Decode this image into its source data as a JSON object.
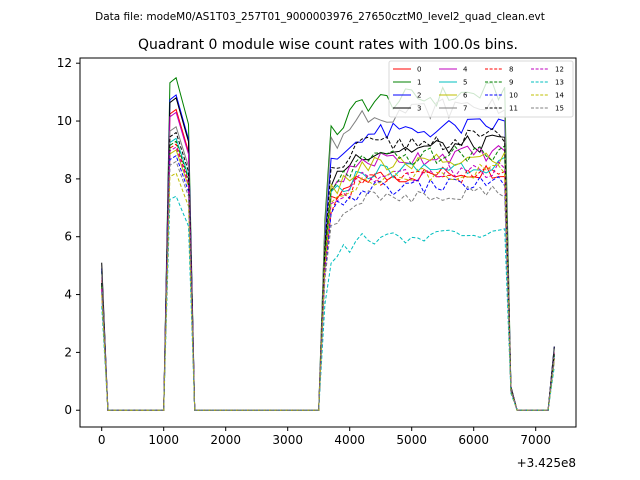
{
  "chart_data": {
    "type": "line",
    "suptitle": "Data file: modeM0/AS1T03_257T01_9000003976_27650cztM0_level2_quad_clean.evt",
    "title": "Quadrant 0 module wise count rates with 100.0s bins.",
    "xlabel": "",
    "ylabel": "",
    "offset_label": "+3.425e8",
    "xlim": [
      -350,
      7650
    ],
    "ylim": [
      -0.58,
      12.18
    ],
    "xticks": [
      0,
      1000,
      2000,
      3000,
      4000,
      5000,
      6000,
      7000
    ],
    "xtick_labels": [
      "0",
      "1000",
      "2000",
      "3000",
      "4000",
      "5000",
      "6000",
      "7000"
    ],
    "yticks": [
      0,
      2,
      4,
      6,
      8,
      10,
      12
    ],
    "ytick_labels": [
      "0",
      "2",
      "4",
      "6",
      "8",
      "10",
      "12"
    ],
    "legend_position": "top-right",
    "legend_columns": 4,
    "segments": [
      {
        "x": [
          0,
          100,
          200,
          300,
          400,
          500,
          600,
          700,
          800,
          900,
          1000
        ]
      },
      {
        "x": [
          1000,
          1100,
          1200,
          1300,
          1400,
          1500,
          1600,
          1700,
          1800,
          1900,
          2000,
          2100,
          2200,
          2300,
          2400,
          2500,
          2600,
          2700,
          2800,
          2900,
          3000,
          3100,
          3200,
          3300,
          3400,
          3500
        ]
      },
      {
        "x": [
          3500,
          3600,
          3700,
          3800,
          3900,
          4000,
          4100,
          4200,
          4300,
          4400,
          4500,
          4600,
          4700,
          4800,
          4900,
          5000,
          5100,
          5200,
          5300,
          5400,
          5500,
          5600,
          5700,
          5800,
          5900,
          6000,
          6100,
          6200,
          6300,
          6400,
          6500,
          6600,
          6700,
          6800,
          6900,
          7000,
          7100,
          7200,
          7300
        ]
      }
    ],
    "series": [
      {
        "name": "0",
        "color": "#ff0000",
        "dash": "solid",
        "start": 4.5,
        "peak": 10.4,
        "plateau": 8.0,
        "end": 2.0
      },
      {
        "name": "1",
        "color": "#008000",
        "dash": "solid",
        "start": 4.8,
        "peak": 11.5,
        "plateau": 10.6,
        "end": 2.1
      },
      {
        "name": "2",
        "color": "#0000ff",
        "dash": "solid",
        "start": 4.9,
        "peak": 10.9,
        "plateau": 9.5,
        "end": 2.2
      },
      {
        "name": "3",
        "color": "#000000",
        "dash": "solid",
        "start": 5.1,
        "peak": 10.8,
        "plateau": 8.9,
        "end": 2.2
      },
      {
        "name": "4",
        "color": "#bf00bf",
        "dash": "solid",
        "start": 4.6,
        "peak": 10.3,
        "plateau": 8.6,
        "end": 2.0
      },
      {
        "name": "5",
        "color": "#00bfbf",
        "dash": "solid",
        "start": 4.4,
        "peak": 9.4,
        "plateau": 8.2,
        "end": 1.9
      },
      {
        "name": "6",
        "color": "#bfbf00",
        "dash": "solid",
        "start": 4.3,
        "peak": 9.0,
        "plateau": 8.4,
        "end": 1.8
      },
      {
        "name": "7",
        "color": "#808080",
        "dash": "solid",
        "start": 4.7,
        "peak": 9.8,
        "plateau": 10.2,
        "end": 2.1
      },
      {
        "name": "8",
        "color": "#ff0000",
        "dash": "dashed",
        "start": 4.2,
        "peak": 9.2,
        "plateau": 7.9,
        "end": 1.8
      },
      {
        "name": "9",
        "color": "#008000",
        "dash": "dashed",
        "start": 4.3,
        "peak": 9.3,
        "plateau": 8.6,
        "end": 1.9
      },
      {
        "name": "10",
        "color": "#0000ff",
        "dash": "dashed",
        "start": 4.1,
        "peak": 8.8,
        "plateau": 7.6,
        "end": 1.7
      },
      {
        "name": "11",
        "color": "#000000",
        "dash": "dashed",
        "start": 4.4,
        "peak": 9.6,
        "plateau": 9.1,
        "end": 2.0
      },
      {
        "name": "12",
        "color": "#bf00bf",
        "dash": "dashed",
        "start": 4.2,
        "peak": 9.1,
        "plateau": 8.0,
        "end": 1.8
      },
      {
        "name": "13",
        "color": "#00bfbf",
        "dash": "dashed",
        "start": 3.6,
        "peak": 7.4,
        "plateau": 5.9,
        "end": 1.5
      },
      {
        "name": "14",
        "color": "#bfbf00",
        "dash": "dashed",
        "start": 4.0,
        "peak": 8.2,
        "plateau": 8.0,
        "end": 1.7
      },
      {
        "name": "15",
        "color": "#808080",
        "dash": "dashed",
        "start": 4.1,
        "peak": 8.6,
        "plateau": 7.3,
        "end": 1.8
      }
    ]
  }
}
